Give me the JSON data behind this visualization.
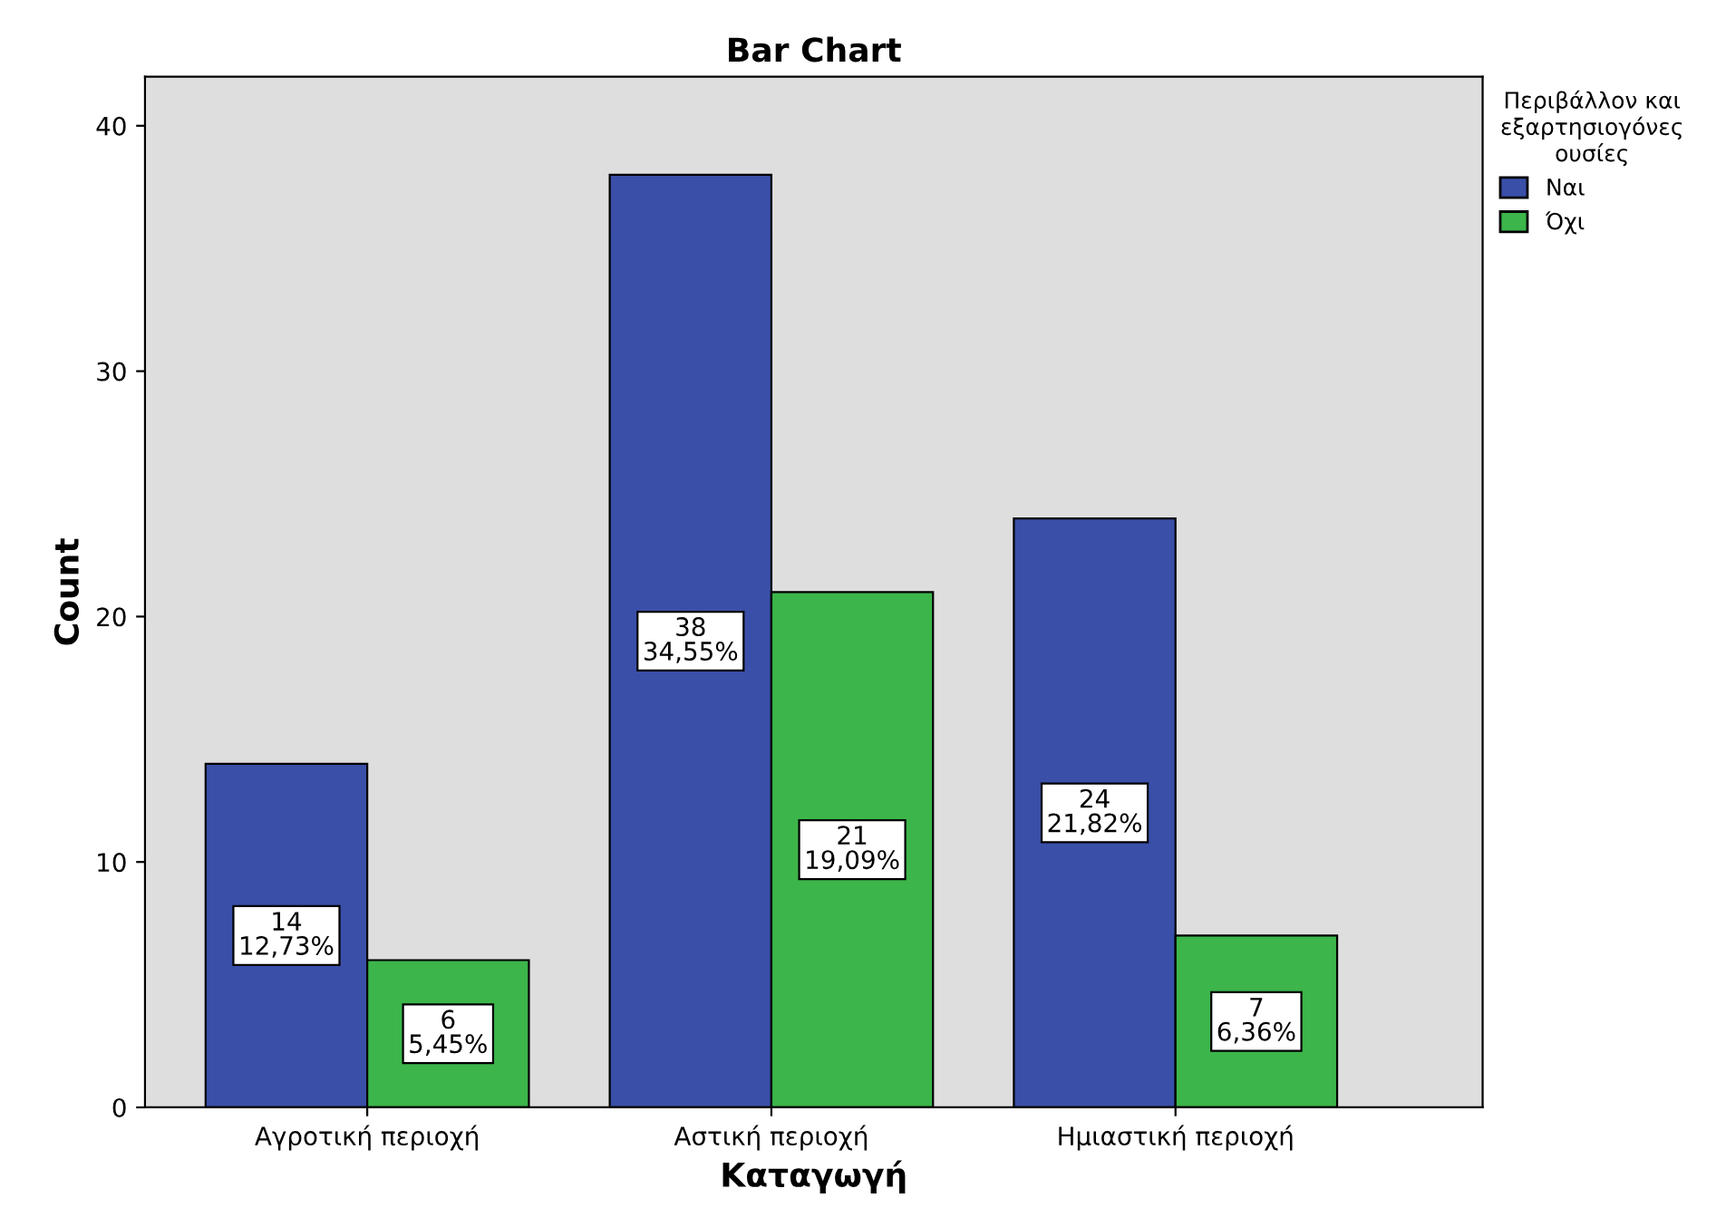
{
  "chart_data": {
    "type": "bar",
    "title": "Bar Chart",
    "xlabel": "Καταγωγή",
    "ylabel": "Count",
    "legend_title": "Περιβάλλον και\nεξαρτησιογόνες\nουσίες",
    "legend": "top right",
    "categories": [
      "Αγροτική περιοχή",
      "Αστική περιοχή",
      "Ημιαστική περιοχή"
    ],
    "series": [
      {
        "name": "Ναι",
        "color": "#3a4fa8",
        "values": [
          14,
          38,
          24
        ],
        "value_labels": [
          "14\n12,73%",
          "38\n34,55%",
          "24\n21,82%"
        ]
      },
      {
        "name": "Όχι",
        "color": "#3cb54a",
        "values": [
          6,
          21,
          7
        ],
        "value_labels": [
          "6\n5,45%",
          "21\n19,09%",
          "7\n6,36%"
        ]
      }
    ],
    "ylim": [
      0,
      42
    ],
    "yticks": [
      0,
      10,
      20,
      30,
      40
    ],
    "grid": false
  }
}
